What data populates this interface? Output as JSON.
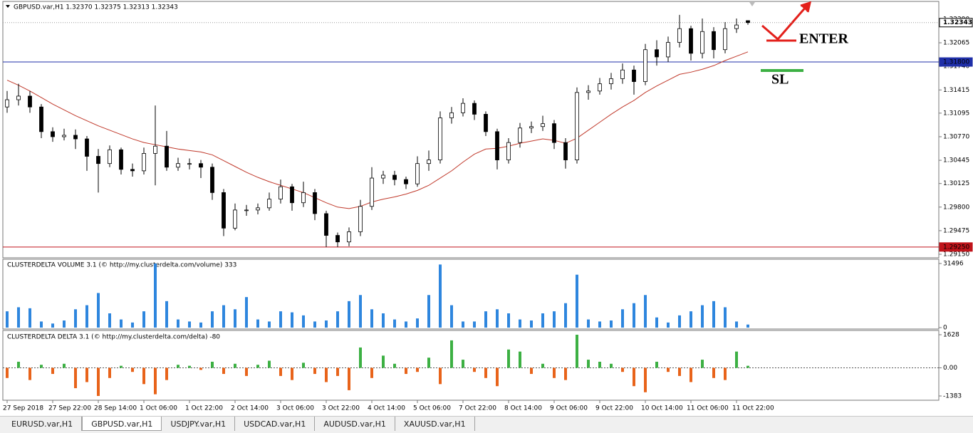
{
  "chart_data": [
    {
      "type": "candlestick",
      "title": "GBPUSD.var,H1  1.32370 1.32375 1.32313 1.32343",
      "candle_color": "#000000",
      "categories": [
        "27 Sep 2018",
        null,
        null,
        null,
        "27 Sep 22:00",
        null,
        null,
        null,
        "28 Sep 14:00",
        null,
        null,
        null,
        "1 Oct 06:00",
        null,
        null,
        null,
        "1 Oct 22:00",
        null,
        null,
        null,
        "2 Oct 14:00",
        null,
        null,
        null,
        "3 Oct 06:00",
        null,
        null,
        null,
        "3 Oct 22:00",
        null,
        null,
        null,
        "4 Oct 14:00",
        null,
        null,
        null,
        "5 Oct 06:00",
        null,
        null,
        null,
        "7 Oct 22:00",
        null,
        null,
        null,
        "8 Oct 14:00",
        null,
        null,
        null,
        "9 Oct 06:00",
        null,
        null,
        null,
        "9 Oct 22:00",
        null,
        null,
        null,
        "10 Oct 14:00",
        null,
        null,
        null,
        "11 Oct 06:00",
        null,
        null,
        null,
        "11 Oct 22:00",
        null
      ],
      "open": [
        1.3118,
        1.3128,
        1.3133,
        1.3118,
        1.3084,
        1.3077,
        1.3079,
        1.3074,
        1.305,
        1.304,
        1.3059,
        1.3032,
        1.303,
        1.3054,
        1.3064,
        1.3035,
        1.304,
        1.304,
        1.3035,
        1.3,
        1.2951,
        1.2976,
        1.2976,
        1.2979,
        1.2991,
        1.3008,
        1.2986,
        1.3,
        1.2971,
        1.2941,
        1.2932,
        1.2946,
        1.2981,
        1.302,
        1.3024,
        1.3018,
        1.3012,
        1.304,
        1.3045,
        1.3103,
        1.311,
        1.3123,
        1.3108,
        1.3084,
        1.3045,
        1.3069,
        1.3089,
        1.3091,
        1.3095,
        1.3069,
        1.3045,
        1.3138,
        1.314,
        1.315,
        1.3157,
        1.3169,
        1.3153,
        1.3197,
        1.3187,
        1.3207,
        1.3226,
        1.3192,
        1.3222,
        1.3197,
        1.3226,
        1.3237
      ],
      "high": [
        1.314,
        1.315,
        1.314,
        1.3122,
        1.309,
        1.3088,
        1.3087,
        1.3078,
        1.306,
        1.3065,
        1.3062,
        1.304,
        1.3062,
        1.312,
        1.3085,
        1.3048,
        1.3047,
        1.3045,
        1.304,
        1.3005,
        1.2985,
        1.2983,
        1.2985,
        1.3,
        1.3018,
        1.3012,
        1.3015,
        1.3005,
        1.2975,
        1.2945,
        1.2952,
        1.299,
        1.3035,
        1.303,
        1.303,
        1.3022,
        1.305,
        1.3058,
        1.3112,
        1.3118,
        1.313,
        1.3127,
        1.3112,
        1.3088,
        1.3075,
        1.3096,
        1.3098,
        1.3106,
        1.31,
        1.3075,
        1.3145,
        1.3148,
        1.3158,
        1.3165,
        1.3178,
        1.3175,
        1.3205,
        1.321,
        1.3215,
        1.3245,
        1.323,
        1.324,
        1.3228,
        1.3235,
        1.324,
        1.32375
      ],
      "low": [
        1.311,
        1.312,
        1.311,
        1.3075,
        1.307,
        1.3072,
        1.306,
        1.303,
        1.3,
        1.3035,
        1.3025,
        1.3022,
        1.3025,
        1.301,
        1.303,
        1.303,
        1.3032,
        1.302,
        1.299,
        1.294,
        1.2948,
        1.2968,
        1.297,
        1.2975,
        1.2985,
        1.2975,
        1.298,
        1.2962,
        1.2925,
        1.2925,
        1.2926,
        1.294,
        1.2976,
        1.3012,
        1.301,
        1.3005,
        1.3008,
        1.303,
        1.304,
        1.3095,
        1.3105,
        1.31,
        1.3078,
        1.3032,
        1.304,
        1.3062,
        1.3082,
        1.3085,
        1.306,
        1.3033,
        1.304,
        1.3128,
        1.3135,
        1.3142,
        1.315,
        1.3135,
        1.3148,
        1.3175,
        1.318,
        1.32,
        1.3182,
        1.3185,
        1.3185,
        1.3192,
        1.322,
        1.32313
      ],
      "close": [
        1.3128,
        1.3133,
        1.3118,
        1.3084,
        1.3077,
        1.3079,
        1.3074,
        1.305,
        1.304,
        1.3059,
        1.3032,
        1.303,
        1.3054,
        1.3064,
        1.3035,
        1.304,
        1.304,
        1.3035,
        1.3,
        1.2951,
        1.2976,
        1.2976,
        1.2979,
        1.2991,
        1.3008,
        1.2986,
        1.3,
        1.2971,
        1.2941,
        1.2932,
        1.2946,
        1.2981,
        1.302,
        1.3024,
        1.3018,
        1.3012,
        1.304,
        1.3045,
        1.3103,
        1.311,
        1.3123,
        1.3108,
        1.3084,
        1.3045,
        1.3069,
        1.3089,
        1.3091,
        1.3095,
        1.3069,
        1.3045,
        1.3138,
        1.314,
        1.315,
        1.3157,
        1.3169,
        1.3153,
        1.3197,
        1.3187,
        1.3207,
        1.3226,
        1.3192,
        1.3222,
        1.3197,
        1.3226,
        1.3231,
        1.32343
      ],
      "lines": [
        {
          "color": "#c0392b",
          "values": [
            1.3155,
            1.3148,
            1.314,
            1.3131,
            1.3122,
            1.3114,
            1.3106,
            1.3099,
            1.3092,
            1.3086,
            1.308,
            1.3074,
            1.3069,
            1.3066,
            1.3063,
            1.306,
            1.3058,
            1.3056,
            1.3052,
            1.3044,
            1.3036,
            1.3028,
            1.3021,
            1.3015,
            1.301,
            1.3005,
            1.3,
            1.2993,
            1.2986,
            1.298,
            1.2978,
            1.2981,
            1.2987,
            1.2991,
            1.2994,
            1.2998,
            1.3003,
            1.301,
            1.302,
            1.303,
            1.3042,
            1.3053,
            1.306,
            1.3061,
            1.3064,
            1.3068,
            1.3071,
            1.3074,
            1.3072,
            1.3068,
            1.3075,
            1.3086,
            1.3097,
            1.3108,
            1.3118,
            1.3127,
            1.3138,
            1.3147,
            1.3155,
            1.3163,
            1.3166,
            1.317,
            1.3175,
            1.3182,
            1.3188,
            1.3194
          ]
        }
      ],
      "hlines": [
        {
          "value": 1.32343,
          "color": "#9a9a9a",
          "dashed": true
        },
        {
          "value": 1.318,
          "label": "1.31800",
          "color": "#1f2fa8"
        },
        {
          "value": 1.2925,
          "label": "1.29250",
          "color": "#c0141b"
        }
      ],
      "annotations": [
        {
          "text": "ENTER",
          "color": "#e3201b"
        },
        {
          "text": "SL",
          "color": "#3cb043"
        }
      ],
      "ylim": [
        1.29101,
        1.32635
      ],
      "yticks": [
        {
          "value": 1.3239,
          "label": "1.32390"
        },
        1.32065,
        {
          "value": 1.3174,
          "label": "1.31740"
        },
        1.31415,
        1.31095,
        {
          "value": 1.3077,
          "label": "1.30770"
        },
        1.30445,
        1.30125,
        {
          "value": 1.298,
          "label": "1.29800"
        },
        1.29475,
        {
          "value": 1.2915,
          "label": "1.29150"
        }
      ]
    },
    {
      "type": "bar",
      "title": "CLUSTERDELTA VOLUME 3.1 (© http://my.clusterdelta.com/volume) 333",
      "color": "#2e86de",
      "values": [
        8000,
        10000,
        9500,
        3000,
        2000,
        3500,
        9000,
        11000,
        17000,
        7000,
        4000,
        2500,
        8000,
        31496,
        13000,
        4000,
        3000,
        2500,
        8000,
        11000,
        9000,
        15000,
        4000,
        3000,
        8000,
        7500,
        6000,
        3000,
        3500,
        8000,
        13000,
        16000,
        9000,
        7000,
        4000,
        3000,
        4500,
        16000,
        31000,
        11000,
        3000,
        3000,
        8000,
        9000,
        7000,
        4000,
        3500,
        7000,
        8000,
        12000,
        26000,
        4000,
        3000,
        3500,
        9000,
        12000,
        16000,
        5000,
        2500,
        6000,
        8000,
        11000,
        13000,
        10000,
        3000,
        1500
      ],
      "ylim": [
        0,
        31496
      ],
      "yticks": [
        0,
        31496
      ]
    },
    {
      "type": "bar",
      "title": "CLUSTERDELTA DELTA 3.1 (© http://my.clusterdelta.com/delta) -80",
      "positive_color": "#3cb043",
      "negative_color": "#e8631a",
      "values": [
        -500,
        300,
        -600,
        150,
        -300,
        200,
        -1000,
        -700,
        -1383,
        -500,
        100,
        -200,
        -800,
        -1300,
        -600,
        150,
        100,
        -100,
        300,
        -300,
        200,
        -400,
        150,
        350,
        -400,
        -600,
        250,
        -300,
        -700,
        -400,
        -1100,
        1000,
        -500,
        600,
        200,
        -300,
        -200,
        500,
        -800,
        1350,
        400,
        -200,
        -500,
        -900,
        900,
        800,
        -300,
        200,
        -500,
        -600,
        1628,
        400,
        300,
        200,
        -200,
        -900,
        -1200,
        300,
        -200,
        -400,
        -700,
        400,
        -500,
        -600,
        800,
        100
      ],
      "ylim": [
        -1383,
        1628
      ],
      "yticks": [
        -1383,
        {
          "value": 0,
          "label": "0.00"
        },
        1628
      ]
    }
  ],
  "tabs": [
    {
      "label": "EURUSD.var,H1"
    },
    {
      "label": "GBPUSD.var,H1",
      "active": true
    },
    {
      "label": "USDJPY.var,H1"
    },
    {
      "label": "USDCAD.var,H1"
    },
    {
      "label": "AUDUSD.var,H1"
    },
    {
      "label": "XAUUSD.var,H1"
    }
  ]
}
